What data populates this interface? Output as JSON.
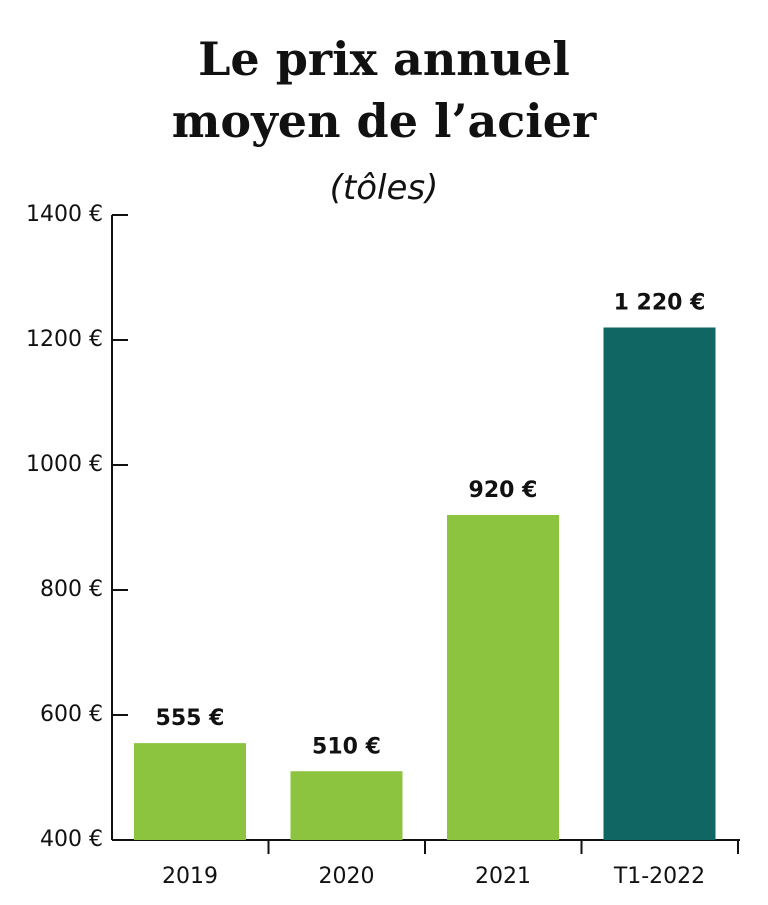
{
  "chart_data": {
    "type": "bar",
    "title": "Le prix annuel moyen de l’acier",
    "subtitle": "(tôles)",
    "categories": [
      "2019",
      "2020",
      "2021",
      "T1-2022"
    ],
    "values": [
      555,
      510,
      920,
      1220
    ],
    "value_labels": [
      "555 €",
      "510 €",
      "920 €",
      "1 220 €"
    ],
    "colors": [
      "#8cc43f",
      "#8cc43f",
      "#8cc43f",
      "#0f6663"
    ],
    "ylim": [
      400,
      1400
    ],
    "yticks": [
      {
        "value": 400,
        "label": "400 €"
      },
      {
        "value": 600,
        "label": "600 €"
      },
      {
        "value": 800,
        "label": "800 €"
      },
      {
        "value": 1000,
        "label": "1000 €"
      },
      {
        "value": 1200,
        "label": "1200 €"
      },
      {
        "value": 1400,
        "label": "1400 €"
      }
    ]
  }
}
